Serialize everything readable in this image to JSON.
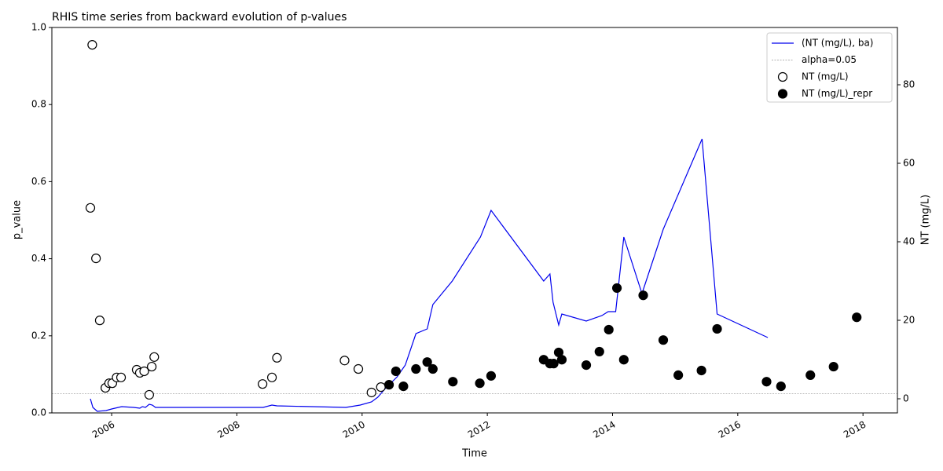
{
  "chart_data": {
    "type": "timeseries",
    "title": "RHIS time series from backward evolution of p-values",
    "xlabel": "Time",
    "ylabel": "p_value",
    "y2label": "NT (mg/L)",
    "xlim": [
      2005.045,
      2018.55
    ],
    "xticks": [
      2006,
      2008,
      2010,
      2012,
      2014,
      2016,
      2018
    ],
    "ylim": [
      0,
      1
    ],
    "yticks": [
      {
        "value": 0,
        "label": "0.0"
      },
      {
        "value": 0.2,
        "label": "0.2"
      },
      {
        "value": 0.4,
        "label": "0.4"
      },
      {
        "value": 0.6,
        "label": "0.6"
      },
      {
        "value": 0.8,
        "label": "0.8"
      },
      {
        "value": 1,
        "label": "1.0"
      }
    ],
    "y2lim": [
      -3.6,
      94.6
    ],
    "y2ticks": [
      0,
      20,
      40,
      60,
      80
    ],
    "legend": "upper right",
    "series": [
      {
        "name": "(NT (mg/L), ba)",
        "kind": "line",
        "axis": "y2",
        "color": "#0000ee",
        "x": [
          2005.66,
          2005.7,
          2005.77,
          2005.91,
          2006.0,
          2006.16,
          2006.35,
          2006.45,
          2006.49,
          2006.54,
          2006.6,
          2006.65,
          2006.7,
          2007.23,
          2008.42,
          2008.56,
          2008.64,
          2009.74,
          2009.97,
          2010.15,
          2010.25,
          2010.37,
          2010.56,
          2010.69,
          2010.86,
          2011.04,
          2011.13,
          2011.44,
          2011.89,
          2012.06,
          2012.9,
          2013.0,
          2013.05,
          2013.14,
          2013.19,
          2013.58,
          2013.83,
          2013.93,
          2014.05,
          2014.18,
          2014.47,
          2014.81,
          2015.43,
          2015.67,
          2016.48
        ],
        "values": [
          0,
          -2.2,
          -3.2,
          -3.0,
          -2.6,
          -2.0,
          -2.2,
          -2.4,
          -2.0,
          -2.2,
          -1.4,
          -1.6,
          -2.2,
          -2.2,
          -2.2,
          -1.6,
          -1.8,
          -2.2,
          -1.6,
          -0.8,
          0.4,
          2.6,
          5.6,
          8.6,
          16.6,
          17.8,
          24,
          30,
          41.2,
          48,
          30,
          31.8,
          24.6,
          18.8,
          21.6,
          19.8,
          21.2,
          22.2,
          22.2,
          41.2,
          26.8,
          43.2,
          66.2,
          21.6,
          15.6
        ]
      },
      {
        "name": "alpha=0.05",
        "kind": "hline",
        "color": "#999999",
        "value": 0.05
      },
      {
        "name": "NT (mg/L)",
        "kind": "scatter",
        "marker": "open",
        "color": "#000000",
        "x": [
          2005.69,
          2005.66,
          2005.75,
          2005.81,
          2005.9,
          2005.96,
          2006.01,
          2006.08,
          2006.15,
          2006.4,
          2006.45,
          2006.52,
          2006.64,
          2006.68,
          2006.6,
          2008.41,
          2008.56,
          2008.64,
          2009.72,
          2009.94,
          2010.15,
          2010.3
        ],
        "values": [
          0.955,
          0.532,
          0.401,
          0.24,
          0.065,
          0.077,
          0.077,
          0.092,
          0.092,
          0.112,
          0.104,
          0.108,
          0.12,
          0.145,
          0.047,
          0.075,
          0.092,
          0.143,
          0.136,
          0.114,
          0.053,
          0.067
        ]
      },
      {
        "name": "NT (mg/L)_repr",
        "kind": "scatter",
        "marker": "filled",
        "color": "#000000",
        "x": [
          2010.43,
          2010.54,
          2010.66,
          2010.86,
          2011.04,
          2011.13,
          2011.45,
          2011.88,
          2012.06,
          2012.9,
          2013.0,
          2013.06,
          2013.14,
          2013.19,
          2013.58,
          2013.79,
          2013.94,
          2014.07,
          2014.18,
          2014.49,
          2014.81,
          2015.05,
          2015.42,
          2015.67,
          2016.46,
          2016.69,
          2017.16,
          2017.53,
          2017.9
        ],
        "values": [
          0.073,
          0.108,
          0.069,
          0.114,
          0.132,
          0.114,
          0.081,
          0.077,
          0.096,
          0.138,
          0.128,
          0.128,
          0.157,
          0.138,
          0.124,
          0.159,
          0.216,
          0.324,
          0.138,
          0.305,
          0.189,
          0.098,
          0.11,
          0.218,
          0.081,
          0.069,
          0.098,
          0.12,
          0.248
        ]
      }
    ]
  }
}
